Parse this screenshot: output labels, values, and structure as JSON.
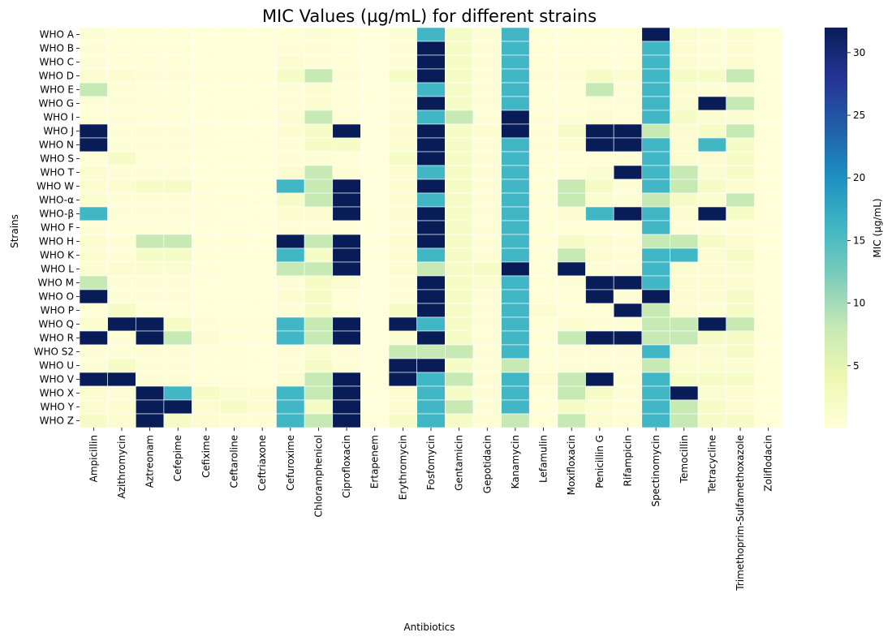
{
  "chart_data": {
    "type": "heatmap",
    "title": "MIC Values (µg/mL) for different strains",
    "xlabel": "Antibiotics",
    "ylabel": "Strains",
    "colorbar_label": "MIC (µg/mL)",
    "colorbar_ticks": [
      5,
      10,
      15,
      20,
      25,
      30
    ],
    "colorbar_range": [
      0.06,
      32
    ],
    "colormap": "YlGnBu",
    "grid_line_color": "#ffffff",
    "x_categories": [
      "Ampicillin",
      "Azithromycin",
      "Aztreonam",
      "Cefepime",
      "Cefixime",
      "Ceftaroline",
      "Ceftriaxone",
      "Cefuroxime",
      "Chloramphenicol",
      "Ciprofloxacin",
      "Ertapenem",
      "Erythromycin",
      "Fosfomycin",
      "Gentamicin",
      "Gepotidacin",
      "Kanamycin",
      "Lefamulin",
      "Moxifloxacin",
      "Penicillin G",
      "Rifampicin",
      "Spectinomycin",
      "Temocillin",
      "Tetracycline",
      "Trimethoprim-Sulfamethoxazole",
      "Zoliflodacin"
    ],
    "y_categories": [
      "WHO A",
      "WHO B",
      "WHO C",
      "WHO D",
      "WHO E",
      "WHO G",
      "WHO I",
      "WHO J",
      "WHO N",
      "WHO S",
      "WHO T",
      "WHO W",
      "WHO-α",
      "WHO-β",
      "WHO F",
      "WHO H",
      "WHO K",
      "WHO L",
      "WHO M",
      "WHO O",
      "WHO P",
      "WHO Q",
      "WHO R",
      "WHO S2",
      "WHO U",
      "WHO V",
      "WHO X",
      "WHO Y",
      "WHO Z"
    ],
    "values": [
      [
        0.5,
        0.25,
        0.25,
        0.25,
        0.12,
        0.12,
        0.12,
        0.25,
        0.5,
        0.25,
        0.06,
        0.5,
        16,
        2,
        0.5,
        16,
        0.25,
        0.25,
        0.25,
        0.25,
        32,
        1,
        0.5,
        1,
        0.12
      ],
      [
        0.5,
        0.25,
        0.25,
        0.25,
        0.12,
        0.12,
        0.12,
        0.5,
        0.5,
        0.25,
        0.06,
        0.5,
        32,
        2,
        0.5,
        16,
        0.25,
        0.25,
        0.25,
        0.25,
        16,
        1,
        0.5,
        1,
        0.12
      ],
      [
        0.5,
        0.25,
        0.25,
        0.25,
        0.12,
        0.12,
        0.12,
        1,
        0.5,
        0.25,
        0.06,
        0.5,
        32,
        2,
        0.5,
        16,
        0.25,
        0.25,
        0.25,
        0.25,
        16,
        1,
        0.5,
        1,
        0.12
      ],
      [
        1,
        1,
        0.5,
        0.5,
        0.25,
        0.25,
        0.25,
        2,
        8,
        0.5,
        0.06,
        2,
        32,
        2,
        0.5,
        16,
        0.5,
        0.5,
        2,
        1,
        16,
        2,
        2,
        8,
        0.12
      ],
      [
        8,
        0.5,
        0.25,
        0.25,
        0.12,
        0.12,
        0.12,
        0.5,
        1,
        0.25,
        0.06,
        0.5,
        16,
        2,
        0.5,
        16,
        0.25,
        0.25,
        8,
        0.5,
        16,
        1,
        0.5,
        1,
        0.12
      ],
      [
        0.5,
        0.5,
        0.25,
        0.25,
        0.12,
        0.12,
        0.12,
        0.5,
        1,
        0.25,
        0.06,
        0.5,
        32,
        2,
        0.5,
        16,
        0.25,
        0.25,
        0.5,
        0.5,
        16,
        1,
        32,
        8,
        0.12
      ],
      [
        0.5,
        0.5,
        0.25,
        0.25,
        0.12,
        0.12,
        0.12,
        1,
        8,
        0.5,
        0.06,
        1,
        16,
        8,
        0.5,
        32,
        0.5,
        0.5,
        1,
        0.5,
        16,
        2,
        1,
        1,
        0.12
      ],
      [
        32,
        0.5,
        0.5,
        0.5,
        0.25,
        0.12,
        0.12,
        1,
        2,
        32,
        0.06,
        1,
        32,
        2,
        1,
        32,
        0.5,
        2,
        32,
        32,
        8,
        1,
        2,
        8,
        0.12
      ],
      [
        32,
        0.5,
        0.5,
        0.5,
        0.25,
        0.12,
        0.12,
        0.5,
        2,
        2,
        0.06,
        1,
        32,
        2,
        0.5,
        16,
        0.5,
        1,
        32,
        32,
        16,
        1,
        16,
        2,
        0.12
      ],
      [
        0.25,
        2,
        0.25,
        0.25,
        0.12,
        0.12,
        0.12,
        0.5,
        0.5,
        0.25,
        0.06,
        2,
        32,
        2,
        0.5,
        16,
        0.25,
        0.25,
        0.25,
        0.5,
        16,
        1,
        1,
        2,
        0.12
      ],
      [
        1,
        0.5,
        0.5,
        0.5,
        0.12,
        0.12,
        0.12,
        1,
        8,
        0.5,
        0.06,
        1,
        16,
        2,
        0.5,
        16,
        0.25,
        0.25,
        1,
        32,
        16,
        8,
        1,
        2,
        0.12
      ],
      [
        1,
        1,
        2,
        2,
        0.25,
        0.12,
        0.12,
        16,
        8,
        32,
        0.06,
        1,
        32,
        2,
        0.5,
        16,
        0.25,
        8,
        2,
        0.5,
        16,
        8,
        2,
        1,
        0.12
      ],
      [
        1,
        0.5,
        0.5,
        0.5,
        0.25,
        0.25,
        0.12,
        2,
        8,
        32,
        0.06,
        1,
        16,
        2,
        0.5,
        16,
        0.25,
        8,
        1,
        0.5,
        8,
        2,
        1,
        8,
        0.12
      ],
      [
        16,
        0.5,
        0.5,
        0.5,
        0.25,
        0.12,
        0.12,
        1,
        1,
        32,
        0.06,
        1,
        32,
        2,
        0.5,
        16,
        0.25,
        1,
        16,
        32,
        16,
        1,
        32,
        2,
        0.12
      ],
      [
        0.5,
        0.25,
        0.25,
        0.25,
        0.12,
        0.12,
        0.12,
        0.5,
        0.5,
        0.25,
        0.06,
        0.5,
        32,
        2,
        0.5,
        16,
        0.25,
        0.25,
        0.25,
        0.25,
        16,
        0.5,
        0.5,
        0.5,
        0.12
      ],
      [
        1,
        0.5,
        8,
        8,
        0.25,
        0.25,
        0.12,
        32,
        8,
        32,
        0.06,
        1,
        32,
        2,
        0.5,
        16,
        0.25,
        2,
        1,
        0.5,
        8,
        8,
        2,
        1,
        0.12
      ],
      [
        1,
        0.5,
        2,
        2,
        0.25,
        0.12,
        0.12,
        16,
        2,
        32,
        0.06,
        1,
        16,
        2,
        0.5,
        16,
        0.25,
        8,
        1,
        0.5,
        16,
        16,
        1,
        2,
        0.12
      ],
      [
        1,
        1,
        1,
        1,
        0.25,
        0.12,
        0.12,
        8,
        8,
        32,
        0.06,
        1,
        8,
        2,
        2,
        32,
        0.25,
        32,
        0.5,
        0.5,
        16,
        1,
        1,
        1,
        0.12
      ],
      [
        8,
        0.5,
        0.5,
        0.5,
        0.12,
        0.12,
        0.12,
        0.5,
        2,
        1,
        0.06,
        0.5,
        32,
        2,
        1,
        16,
        0.25,
        0.5,
        32,
        32,
        16,
        1,
        1,
        1,
        0.12
      ],
      [
        32,
        0.5,
        0.5,
        0.5,
        0.12,
        0.12,
        0.12,
        1,
        2,
        0.25,
        0.06,
        0.5,
        32,
        2,
        0.5,
        16,
        0.25,
        0.25,
        32,
        0.5,
        32,
        1,
        1,
        2,
        0.12
      ],
      [
        0.25,
        2,
        0.25,
        0.25,
        0.12,
        0.12,
        0.12,
        0.5,
        2,
        0.25,
        0.06,
        2,
        32,
        2,
        0.5,
        16,
        1,
        0.25,
        0.25,
        32,
        8,
        1,
        0.5,
        2,
        0.12
      ],
      [
        1,
        32,
        32,
        2,
        0.5,
        0.25,
        0.25,
        16,
        8,
        32,
        0.06,
        32,
        16,
        2,
        0.5,
        16,
        0.25,
        1,
        0.5,
        0.5,
        8,
        8,
        32,
        8,
        0.12
      ],
      [
        32,
        0.5,
        32,
        8,
        1,
        0.25,
        0.25,
        16,
        8,
        32,
        0.06,
        1,
        32,
        2,
        0.5,
        16,
        0.25,
        8,
        32,
        32,
        8,
        8,
        2,
        2,
        0.12
      ],
      [
        0.5,
        0.5,
        0.5,
        0.5,
        0.25,
        0.25,
        0.12,
        0.5,
        1,
        0.5,
        0.06,
        8,
        8,
        8,
        0.5,
        16,
        0.25,
        0.5,
        0.5,
        0.5,
        16,
        1,
        1,
        2,
        0.12
      ],
      [
        0.5,
        2,
        0.5,
        0.5,
        0.25,
        0.25,
        0.12,
        0.5,
        2,
        0.5,
        0.06,
        32,
        32,
        2,
        0.5,
        8,
        0.25,
        0.5,
        0.5,
        0.5,
        8,
        1,
        1,
        1,
        0.12
      ],
      [
        32,
        32,
        0.5,
        0.5,
        0.25,
        0.25,
        0.12,
        1,
        8,
        32,
        0.06,
        32,
        16,
        8,
        0.5,
        16,
        1,
        8,
        32,
        0.5,
        16,
        2,
        2,
        2,
        0.12
      ],
      [
        1,
        0.5,
        32,
        16,
        2,
        1,
        1,
        16,
        8,
        32,
        0.06,
        1,
        16,
        2,
        0.5,
        16,
        0.25,
        8,
        2,
        0.5,
        16,
        32,
        1,
        1,
        0.12
      ],
      [
        1,
        1,
        32,
        32,
        1,
        2,
        1,
        16,
        2,
        32,
        0.06,
        1,
        16,
        8,
        0.5,
        16,
        0.25,
        2,
        1,
        0.5,
        16,
        8,
        2,
        1,
        0.12
      ],
      [
        2,
        1,
        32,
        2,
        1,
        0.5,
        0.5,
        16,
        8,
        32,
        0.06,
        2,
        16,
        2,
        0.5,
        8,
        0.25,
        8,
        1,
        0.5,
        16,
        8,
        2,
        2,
        0.12
      ]
    ]
  }
}
